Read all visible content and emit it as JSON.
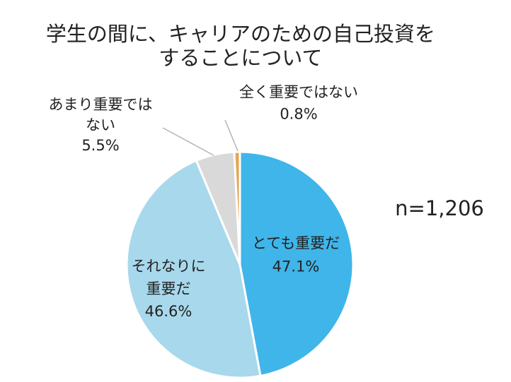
{
  "chart_data": {
    "type": "pie",
    "title_lines": [
      "学生の間に、キャリアのための自己投資を",
      "することについて"
    ],
    "annotation": "n=1,206",
    "slices": [
      {
        "label_lines": [
          "とても重要だ"
        ],
        "value": 47.1,
        "value_label": "47.1%",
        "color": "#40b5e9"
      },
      {
        "label_lines": [
          "それなりに",
          "重要だ"
        ],
        "value": 46.6,
        "value_label": "46.6%",
        "color": "#a8d8ec"
      },
      {
        "label_lines": [
          "あまり重要では",
          "ない"
        ],
        "value": 5.5,
        "value_label": "5.5%",
        "color": "#d9d9d9"
      },
      {
        "label_lines": [
          "全く重要ではない"
        ],
        "value": 0.8,
        "value_label": "0.8%",
        "color": "#e3a653"
      }
    ]
  }
}
